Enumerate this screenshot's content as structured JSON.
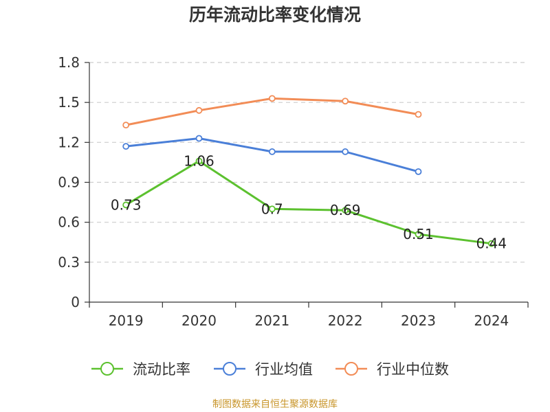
{
  "title": "历年流动比率变化情况",
  "source": "制图数据来自恒生聚源数据库",
  "chart_data": {
    "type": "line",
    "title": "历年流动比率变化情况",
    "categories": [
      "2019",
      "2020",
      "2021",
      "2022",
      "2023",
      "2024"
    ],
    "ylim": [
      0,
      1.8
    ],
    "yticks": [
      0,
      0.3,
      0.6,
      0.9,
      1.2,
      1.5,
      1.8
    ],
    "ytick_labels": [
      "0",
      "0.3",
      "0.6",
      "0.9",
      "1.2",
      "1.5",
      "1.8"
    ],
    "grid": true,
    "legend_position": "bottom",
    "series": [
      {
        "name": "流动比率",
        "color": "#5cc12f",
        "values": [
          0.73,
          1.06,
          0.7,
          0.69,
          0.51,
          0.44
        ],
        "labels": [
          "0.73",
          "1.06",
          "0.7",
          "0.69",
          "0.51",
          "0.44"
        ],
        "show_labels": true
      },
      {
        "name": "行业均值",
        "color": "#4a7fd8",
        "values": [
          1.17,
          1.23,
          1.13,
          1.13,
          0.98,
          null
        ],
        "show_labels": false
      },
      {
        "name": "行业中位数",
        "color": "#f28c56",
        "values": [
          1.33,
          1.44,
          1.53,
          1.51,
          1.41,
          null
        ],
        "show_labels": false
      }
    ]
  }
}
